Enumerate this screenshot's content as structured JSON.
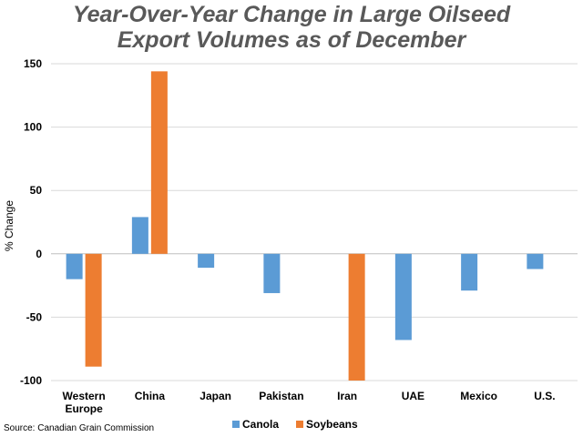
{
  "chart_data": {
    "type": "bar",
    "title_line1": "Year-Over-Year Change in Large Oilseed",
    "title_line2": "Export Volumes as of December",
    "ylabel": "% Change",
    "xlabel": "",
    "categories": [
      [
        "Western",
        "Europe"
      ],
      [
        "China"
      ],
      [
        "Japan"
      ],
      [
        "Pakistan"
      ],
      [
        "Iran"
      ],
      [
        "UAE"
      ],
      [
        "Mexico"
      ],
      [
        "U.S."
      ]
    ],
    "series": [
      {
        "name": "Canola",
        "color": "#5B9BD5",
        "values": [
          -20,
          29,
          -11,
          -31,
          null,
          -68,
          -29,
          -12
        ]
      },
      {
        "name": "Soybeans",
        "color": "#ED7D31",
        "values": [
          -89,
          144,
          null,
          null,
          -100,
          null,
          null,
          null
        ]
      }
    ],
    "ylim": [
      -100,
      150
    ],
    "yticks": [
      -100,
      -50,
      0,
      50,
      100,
      150
    ],
    "grid": true,
    "legend_position": "bottom"
  },
  "source": "Source: Canadian Grain Commission"
}
